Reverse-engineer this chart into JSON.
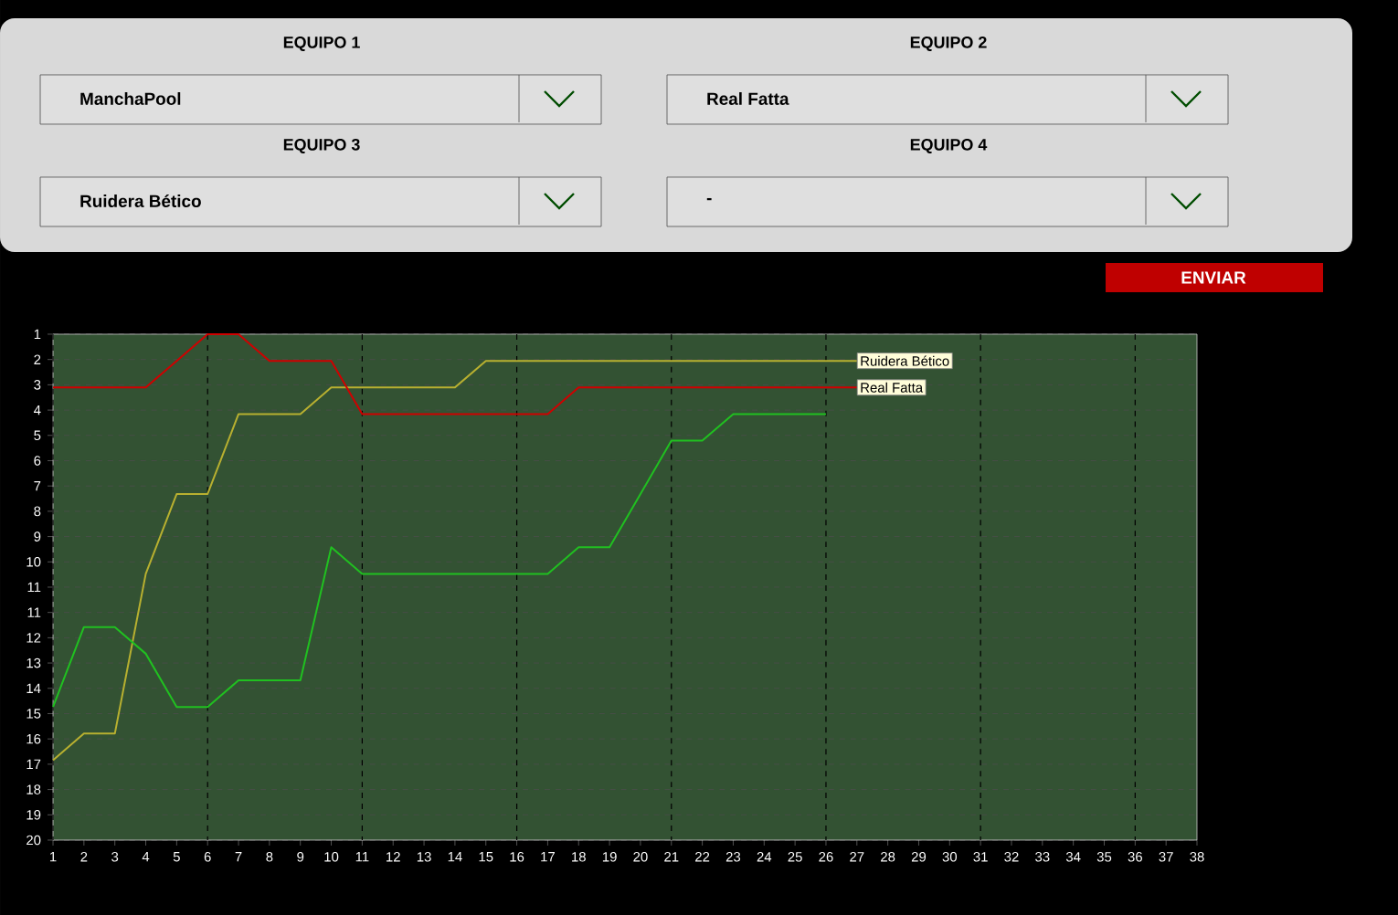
{
  "chart_data": {
    "type": "line",
    "x": [
      1,
      2,
      3,
      4,
      5,
      6,
      7,
      8,
      9,
      10,
      11,
      12,
      13,
      14,
      15,
      16,
      17,
      18,
      19,
      20,
      21,
      22,
      23,
      24,
      25,
      26,
      27
    ],
    "series": [
      {
        "name": "Ruidera Bético",
        "color": "#b8b030",
        "values": [
          17,
          16,
          16,
          10,
          7,
          7,
          4,
          4,
          4,
          3,
          3,
          3,
          3,
          3,
          2,
          2,
          2,
          2,
          2,
          2,
          2,
          2,
          2,
          2,
          2,
          2,
          2
        ]
      },
      {
        "name": "Real Fatta",
        "color": "#d00000",
        "values": [
          3,
          3,
          3,
          3,
          2,
          1,
          1,
          2,
          2,
          2,
          4,
          4,
          4,
          4,
          4,
          4,
          4,
          3,
          3,
          3,
          3,
          3,
          3,
          3,
          3,
          3,
          3
        ]
      },
      {
        "color": "#20c020",
        "values": [
          15,
          12,
          12,
          13,
          15,
          15,
          14,
          14,
          14,
          9,
          10,
          10,
          10,
          10,
          10,
          10,
          10,
          9,
          9,
          7,
          5,
          5,
          4,
          4,
          4,
          4,
          null
        ]
      }
    ],
    "xlim": [
      1,
      38
    ],
    "xticks": [
      1,
      2,
      3,
      4,
      5,
      6,
      7,
      8,
      9,
      10,
      11,
      12,
      13,
      14,
      15,
      16,
      17,
      18,
      19,
      20,
      21,
      22,
      23,
      24,
      25,
      26,
      27,
      28,
      29,
      30,
      31,
      32,
      33,
      34,
      35,
      36,
      37,
      38
    ],
    "ylim": [
      20,
      1
    ],
    "yticks": [
      {
        "value": 1,
        "label": "1"
      },
      {
        "value": 1.95,
        "label": "2"
      },
      {
        "value": 2.9,
        "label": "3"
      },
      {
        "value": 3.85,
        "label": "4"
      },
      {
        "value": 4.8,
        "label": "5"
      },
      {
        "value": 5.75,
        "label": "6"
      },
      {
        "value": 6.7,
        "label": "7"
      },
      {
        "value": 7.65,
        "label": "8"
      },
      {
        "value": 8.6,
        "label": "9"
      },
      {
        "value": 9.55,
        "label": "10"
      },
      {
        "value": 10.5,
        "label": "11"
      },
      {
        "value": 11.45,
        "label": "11"
      },
      {
        "value": 12.4,
        "label": "12"
      },
      {
        "value": 13.35,
        "label": "13"
      },
      {
        "value": 14.3,
        "label": "14"
      },
      {
        "value": 15.25,
        "label": "15"
      },
      {
        "value": 16.2,
        "label": "16"
      },
      {
        "value": 17.15,
        "label": "17"
      },
      {
        "value": 18.1,
        "label": "18"
      },
      {
        "value": 19.05,
        "label": "19"
      },
      {
        "value": 20,
        "label": "20"
      }
    ],
    "grid": true,
    "marker": "none",
    "line_style": "solid",
    "annotations": [
      "EQUIPO 1",
      "ManchaPool",
      "EQUIPO 2",
      "Real Fatta",
      "EQUIPO 3",
      "Ruidera Bético",
      "EQUIPO 4",
      "-",
      "ENVIAR"
    ]
  }
}
